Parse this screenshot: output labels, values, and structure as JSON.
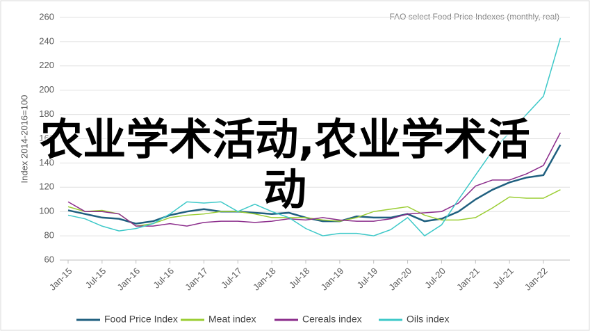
{
  "chart_data": {
    "type": "line",
    "title": "FAO select Food Price Indexes (monthly, real)",
    "y_label": "Index 2014-2016=100",
    "overlay_text": "农业学术活动,农业学术活动",
    "categories": [
      "Jan-15",
      null,
      "Jul-15",
      null,
      "Jan-16",
      null,
      "Jul-16",
      null,
      "Jan-17",
      null,
      "Jul-17",
      null,
      "Jan-18",
      null,
      "Jul-18",
      null,
      "Jan-19",
      null,
      "Jul-19",
      null,
      "Jan-20",
      null,
      "Jul-20",
      null,
      "Jan-21",
      null,
      "Jul-21",
      null,
      "Jan-22",
      null
    ],
    "series": [
      {
        "name": "Food Price Index",
        "color": "#1f5f7f",
        "values": [
          101,
          98,
          95,
          94,
          90,
          92,
          97,
          100,
          102,
          100,
          100,
          99,
          98,
          99,
          95,
          92,
          92,
          96,
          95,
          95,
          98,
          92,
          94,
          100,
          110,
          118,
          124,
          128,
          130,
          155
        ]
      },
      {
        "name": "Meat index",
        "color": "#9acd32",
        "values": [
          104,
          100,
          101,
          98,
          88,
          90,
          95,
          97,
          98,
          100,
          100,
          98,
          95,
          95,
          95,
          93,
          92,
          95,
          100,
          102,
          104,
          97,
          93,
          93,
          95,
          103,
          112,
          111,
          111,
          118
        ]
      },
      {
        "name": "Cereals index",
        "color": "#8b2c8b",
        "values": [
          108,
          100,
          100,
          98,
          88,
          88,
          90,
          88,
          91,
          92,
          92,
          91,
          92,
          94,
          93,
          95,
          93,
          92,
          92,
          94,
          98,
          99,
          100,
          107,
          121,
          126,
          126,
          131,
          138,
          165
        ]
      },
      {
        "name": "Oils index",
        "color": "#3cc8c8",
        "values": [
          97,
          94,
          88,
          84,
          86,
          90,
          98,
          108,
          107,
          108,
          100,
          106,
          100,
          95,
          86,
          80,
          82,
          82,
          80,
          85,
          95,
          80,
          89,
          110,
          130,
          150,
          165,
          180,
          195,
          243
        ]
      }
    ],
    "ylim": [
      60,
      260
    ],
    "yticks": [
      60,
      80,
      100,
      120,
      140,
      160,
      180,
      200,
      220,
      240,
      260
    ],
    "grid": true
  }
}
